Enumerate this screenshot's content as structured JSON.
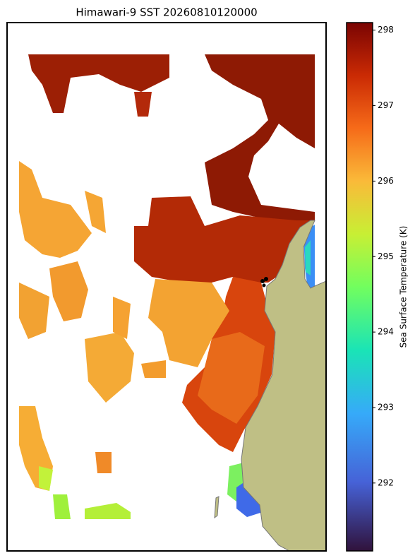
{
  "title": "Himawari-9 SST 20260810120000",
  "colorbar": {
    "label": "Sea Surface Temperature (K)",
    "lim": [
      291.1,
      298.1
    ],
    "ticks": [
      292,
      293,
      294,
      295,
      296,
      297,
      298
    ]
  }
}
